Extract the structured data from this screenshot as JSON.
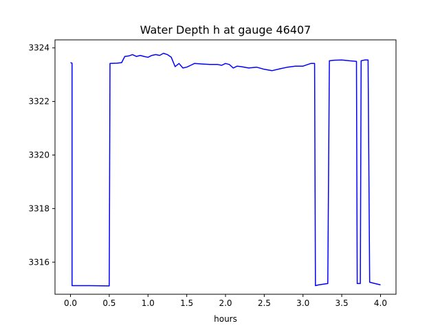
{
  "chart_data": {
    "type": "line",
    "title": "Water Depth h at gauge 46407",
    "xlabel": "hours",
    "ylabel": "",
    "xlim": [
      -0.2,
      4.2
    ],
    "ylim": [
      3314.8,
      3324.3
    ],
    "xticks": [
      0.0,
      0.5,
      1.0,
      1.5,
      2.0,
      2.5,
      3.0,
      3.5,
      4.0
    ],
    "xtick_labels": [
      "0.0",
      "0.5",
      "1.0",
      "1.5",
      "2.0",
      "2.5",
      "3.0",
      "3.5",
      "4.0"
    ],
    "yticks": [
      3316,
      3318,
      3320,
      3322,
      3324
    ],
    "ytick_labels": [
      "3316",
      "3318",
      "3320",
      "3322",
      "3324"
    ],
    "grid": false,
    "series": [
      {
        "color": "#0000ff",
        "x": [
          0.0,
          0.02,
          0.02,
          0.25,
          0.5,
          0.51,
          0.6,
          0.66,
          0.7,
          0.75,
          0.8,
          0.85,
          0.9,
          0.95,
          1.0,
          1.05,
          1.1,
          1.15,
          1.2,
          1.25,
          1.3,
          1.35,
          1.4,
          1.45,
          1.5,
          1.55,
          1.6,
          1.7,
          1.8,
          1.9,
          1.95,
          2.0,
          2.05,
          2.1,
          2.15,
          2.2,
          2.3,
          2.4,
          2.5,
          2.6,
          2.7,
          2.8,
          2.9,
          3.0,
          3.1,
          3.15,
          3.16,
          3.2,
          3.32,
          3.34,
          3.4,
          3.5,
          3.6,
          3.69,
          3.7,
          3.74,
          3.75,
          3.8,
          3.84,
          3.86,
          3.9,
          4.0
        ],
        "y": [
          3323.45,
          3323.43,
          3315.12,
          3315.12,
          3315.11,
          3323.42,
          3323.43,
          3323.45,
          3323.68,
          3323.7,
          3323.75,
          3323.68,
          3323.72,
          3323.68,
          3323.65,
          3323.72,
          3323.75,
          3323.72,
          3323.8,
          3323.75,
          3323.65,
          3323.3,
          3323.42,
          3323.25,
          3323.28,
          3323.35,
          3323.42,
          3323.4,
          3323.38,
          3323.38,
          3323.35,
          3323.42,
          3323.38,
          3323.25,
          3323.32,
          3323.3,
          3323.25,
          3323.28,
          3323.2,
          3323.15,
          3323.22,
          3323.28,
          3323.32,
          3323.32,
          3323.42,
          3323.42,
          3315.12,
          3315.15,
          3315.2,
          3323.52,
          3323.54,
          3323.55,
          3323.52,
          3323.5,
          3315.2,
          3315.2,
          3323.52,
          3323.55,
          3323.55,
          3315.25,
          3315.22,
          3315.15
        ]
      }
    ]
  }
}
